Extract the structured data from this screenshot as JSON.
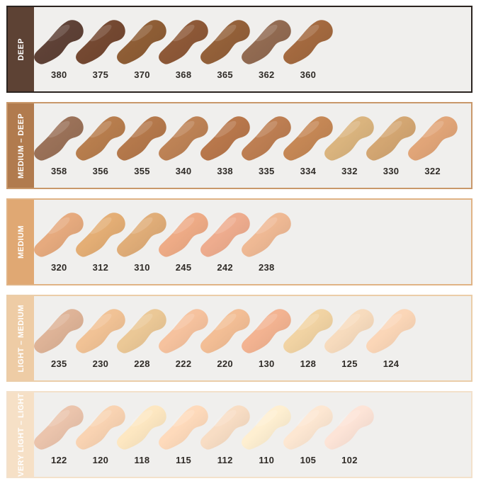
{
  "page": {
    "background": "#ffffff",
    "row_background": "#f0efed",
    "number_text_color": "#2f2b27",
    "label_text_color": "#ffffff"
  },
  "chart_data": {
    "type": "table",
    "description": "Foundation shade swatch chart grouped by depth category; each swatch is a smear of product labeled with its shade number",
    "legend_position": "left-vertical-bars",
    "groups": [
      {
        "category": "DEEP",
        "label_bar_color": "#5d4234",
        "border_color": "#2b2420",
        "shades": [
          {
            "code": "380",
            "hex": "#5e4136"
          },
          {
            "code": "375",
            "hex": "#744831"
          },
          {
            "code": "370",
            "hex": "#8e5d35"
          },
          {
            "code": "368",
            "hex": "#8d5837"
          },
          {
            "code": "365",
            "hex": "#936039"
          },
          {
            "code": "362",
            "hex": "#916a51"
          },
          {
            "code": "360",
            "hex": "#a3693f"
          }
        ]
      },
      {
        "category": "MEDIUM – DEEP",
        "label_bar_color": "#b17b4e",
        "border_color": "#c9986a",
        "shades": [
          {
            "code": "358",
            "hex": "#9a7158"
          },
          {
            "code": "356",
            "hex": "#b77d4d"
          },
          {
            "code": "355",
            "hex": "#b4784b"
          },
          {
            "code": "340",
            "hex": "#bd8255"
          },
          {
            "code": "338",
            "hex": "#b8774b"
          },
          {
            "code": "335",
            "hex": "#bd7e52"
          },
          {
            "code": "334",
            "hex": "#c58755"
          },
          {
            "code": "332",
            "hex": "#dab47e"
          },
          {
            "code": "330",
            "hex": "#d3a672"
          },
          {
            "code": "322",
            "hex": "#e1a578"
          }
        ]
      },
      {
        "category": "MEDIUM",
        "label_bar_color": "#e0a873",
        "border_color": "#e0b385",
        "shades": [
          {
            "code": "320",
            "hex": "#e6aa7e"
          },
          {
            "code": "312",
            "hex": "#e4ae75"
          },
          {
            "code": "310",
            "hex": "#e0ad78"
          },
          {
            "code": "245",
            "hex": "#eeab86"
          },
          {
            "code": "242",
            "hex": "#eeac8e"
          },
          {
            "code": "238",
            "hex": "#efb994"
          }
        ]
      },
      {
        "category": "LIGHT – MEDIUM",
        "label_bar_color": "#eecca5",
        "border_color": "#ebcda8",
        "shades": [
          {
            "code": "235",
            "hex": "#deb397"
          },
          {
            "code": "230",
            "hex": "#f1c295"
          },
          {
            "code": "228",
            "hex": "#ebc896"
          },
          {
            "code": "222",
            "hex": "#f6c29e"
          },
          {
            "code": "220",
            "hex": "#f3be95"
          },
          {
            "code": "130",
            "hex": "#f3b391"
          },
          {
            "code": "128",
            "hex": "#f1d3a3"
          },
          {
            "code": "125",
            "hex": "#f7dbbd"
          },
          {
            "code": "124",
            "hex": "#fbd6b7"
          }
        ]
      },
      {
        "category": "VERY LIGHT – LIGHT",
        "label_bar_color": "#f6e0c6",
        "border_color": "#f3e1cb",
        "shades": [
          {
            "code": "122",
            "hex": "#ebc4ac"
          },
          {
            "code": "120",
            "hex": "#f9d3b2"
          },
          {
            "code": "118",
            "hex": "#fde7c1"
          },
          {
            "code": "115",
            "hex": "#fedabb"
          },
          {
            "code": "112",
            "hex": "#f8ddc4"
          },
          {
            "code": "110",
            "hex": "#feefd1"
          },
          {
            "code": "105",
            "hex": "#fde7d2"
          },
          {
            "code": "102",
            "hex": "#fde4d7"
          }
        ]
      }
    ]
  }
}
